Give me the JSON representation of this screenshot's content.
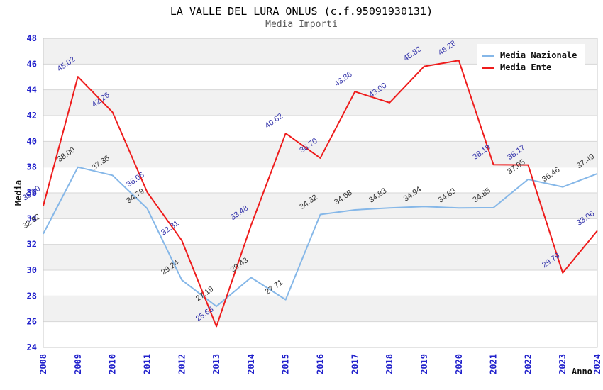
{
  "header": {
    "title": "LA VALLE DEL LURA ONLUS (c.f.95091930131)",
    "subtitle": "Media Importi"
  },
  "chart_data": {
    "type": "line",
    "title": "LA VALLE DEL LURA ONLUS (c.f.95091930131)",
    "subtitle": "Media Importi",
    "xlabel": "Anno",
    "ylabel": "Media",
    "ylim": [
      24,
      48
    ],
    "ytick_step": 2,
    "grid": true,
    "legend_position": "top-right",
    "categories": [
      "2008",
      "2009",
      "2010",
      "2011",
      "2012",
      "2013",
      "2014",
      "2015",
      "2016",
      "2017",
      "2018",
      "2019",
      "2020",
      "2021",
      "2022",
      "2023",
      "2024"
    ],
    "series": [
      {
        "name": "Media Nazionale",
        "color": "#85b7e8",
        "label_color": "#333333",
        "values": [
          32.82,
          38.0,
          37.36,
          34.79,
          29.24,
          27.19,
          29.43,
          27.71,
          34.32,
          34.68,
          34.83,
          34.94,
          34.83,
          34.85,
          37.05,
          36.46,
          37.49
        ]
      },
      {
        "name": "Media Ente",
        "color": "#ee1c1c",
        "label_color": "#3333aa",
        "values": [
          35.0,
          45.02,
          42.26,
          36.06,
          32.31,
          25.63,
          33.48,
          40.62,
          38.7,
          43.86,
          43.0,
          45.82,
          46.28,
          38.19,
          38.17,
          29.79,
          33.06
        ]
      }
    ],
    "colors": {
      "tick_label": "#2222cc",
      "gridline": "#d6d6d6",
      "plot_border": "#c9c9c9",
      "band_gray": "#f1f1f1",
      "band_white": "#ffffff"
    }
  }
}
